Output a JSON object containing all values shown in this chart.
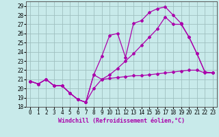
{
  "xlabel": "Windchill (Refroidissement éolien,°C)",
  "background_color": "#c8eaea",
  "grid_color": "#9fbfbf",
  "line_color": "#aa00aa",
  "xlim": [
    -0.5,
    23.5
  ],
  "ylim": [
    18,
    29.5
  ],
  "xticks": [
    0,
    1,
    2,
    3,
    4,
    5,
    6,
    7,
    8,
    9,
    10,
    11,
    12,
    13,
    14,
    15,
    16,
    17,
    18,
    19,
    20,
    21,
    22,
    23
  ],
  "yticks": [
    18,
    19,
    20,
    21,
    22,
    23,
    24,
    25,
    26,
    27,
    28,
    29
  ],
  "line1_x": [
    0,
    1,
    2,
    3,
    4,
    5,
    6,
    7,
    8,
    9,
    10,
    11,
    12,
    13,
    14,
    15,
    16,
    17,
    18,
    19,
    20,
    21,
    22,
    23
  ],
  "line1_y": [
    20.8,
    20.5,
    21.0,
    20.3,
    20.3,
    19.5,
    18.8,
    18.5,
    20.0,
    21.0,
    21.1,
    21.2,
    21.3,
    21.4,
    21.4,
    21.5,
    21.6,
    21.7,
    21.8,
    21.9,
    22.0,
    22.0,
    21.7,
    21.7
  ],
  "line2_x": [
    0,
    1,
    2,
    3,
    4,
    5,
    6,
    7,
    8,
    9,
    10,
    11,
    12,
    13,
    14,
    15,
    16,
    17,
    18,
    19,
    20,
    21,
    22,
    23
  ],
  "line2_y": [
    20.8,
    20.5,
    21.0,
    20.3,
    20.3,
    19.5,
    18.8,
    18.5,
    21.5,
    23.5,
    25.8,
    26.0,
    23.4,
    27.1,
    27.4,
    28.3,
    28.7,
    28.9,
    28.0,
    27.1,
    25.6,
    23.8,
    21.8,
    21.7
  ],
  "line3_x": [
    0,
    1,
    2,
    3,
    4,
    5,
    6,
    7,
    8,
    9,
    10,
    11,
    12,
    13,
    14,
    15,
    16,
    17,
    18,
    19,
    20,
    21,
    22,
    23
  ],
  "line3_y": [
    20.8,
    20.5,
    21.0,
    20.3,
    20.3,
    19.5,
    18.8,
    18.5,
    21.5,
    21.0,
    21.5,
    22.2,
    23.0,
    23.8,
    24.7,
    25.6,
    26.5,
    27.8,
    27.0,
    27.0,
    25.6,
    23.8,
    21.8,
    21.7
  ],
  "font_family": "monospace",
  "marker": "D",
  "markersize": 2,
  "linewidth": 0.9,
  "tick_fontsize": 5.5,
  "xlabel_fontsize": 6.0
}
